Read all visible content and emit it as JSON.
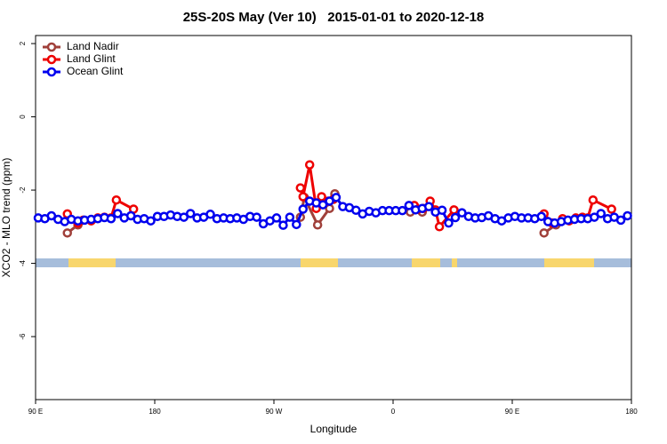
{
  "chart_data": {
    "type": "line",
    "title": "25S-20S May (Ver 10)   2015-01-01 to 2020-12-18",
    "x_label": "Longitude",
    "y_label": "XCO2 - MLO trend (ppm)",
    "xlim": [
      90,
      540
    ],
    "ylim": [
      -7.72,
      2.22
    ],
    "xticks": [
      {
        "value": 90,
        "label": "90 E"
      },
      {
        "value": 180,
        "label": "180"
      },
      {
        "value": 270,
        "label": "90 W"
      },
      {
        "value": 360,
        "label": "0"
      },
      {
        "value": 450,
        "label": "90 E"
      },
      {
        "value": 540,
        "label": "180"
      }
    ],
    "yticks": [
      2,
      0,
      -2,
      -4,
      -6
    ],
    "legend": "top-left",
    "series": [
      {
        "name": "Land Nadir",
        "color": "#a0403a",
        "x": [
          114,
          122,
          null,
          290,
          293,
          303,
          312,
          316,
          null,
          373,
          382,
          null,
          474,
          483
        ],
        "values": [
          -3.17,
          -2.95,
          null,
          -2.74,
          -2.2,
          -2.95,
          -2.5,
          -2.1,
          null,
          -2.6,
          -2.6,
          null,
          -3.17,
          -2.95
        ]
      },
      {
        "name": "Land Glint",
        "color": "#ee0000",
        "x": [
          114,
          122,
          126,
          132,
          137,
          142,
          147,
          151,
          164,
          null,
          290,
          292,
          297,
          302,
          306,
          311,
          315,
          null,
          376,
          379,
          383,
          388,
          392,
          395,
          406,
          null,
          474,
          480,
          488,
          493,
          498,
          503,
          507,
          511,
          525
        ],
        "values": [
          -2.65,
          -2.9,
          -2.82,
          -2.84,
          -2.76,
          -2.74,
          -2.76,
          -2.27,
          -2.52,
          null,
          -1.94,
          -2.18,
          -1.31,
          -2.5,
          -2.18,
          -2.3,
          -2.25,
          null,
          -2.42,
          -2.52,
          -2.5,
          -2.3,
          -2.54,
          -3.0,
          -2.54,
          null,
          -2.65,
          -2.9,
          -2.78,
          -2.84,
          -2.76,
          -2.74,
          -2.76,
          -2.27,
          -2.52
        ]
      },
      {
        "name": "Ocean Glint",
        "color": "#0000ee",
        "x": [
          92,
          97,
          102,
          107,
          112,
          117,
          122,
          127,
          132,
          137,
          142,
          147,
          152,
          157,
          162,
          167,
          172,
          177,
          182,
          187,
          192,
          197,
          202,
          207,
          212,
          217,
          222,
          227,
          232,
          237,
          242,
          247,
          252,
          257,
          262,
          267,
          272,
          277,
          282,
          287,
          292,
          297,
          302,
          307,
          312,
          317,
          322,
          327,
          332,
          337,
          342,
          347,
          352,
          357,
          362,
          367,
          372,
          377,
          382,
          387,
          392,
          397,
          402,
          407,
          412,
          417,
          422,
          427,
          432,
          437,
          442,
          447,
          452,
          457,
          462,
          467,
          472,
          477,
          482,
          487,
          492,
          497,
          502,
          507,
          512,
          517,
          522,
          527,
          532,
          537
        ],
        "values": [
          -2.76,
          -2.78,
          -2.7,
          -2.8,
          -2.86,
          -2.8,
          -2.84,
          -2.82,
          -2.8,
          -2.78,
          -2.75,
          -2.78,
          -2.64,
          -2.76,
          -2.7,
          -2.8,
          -2.78,
          -2.84,
          -2.72,
          -2.72,
          -2.68,
          -2.72,
          -2.74,
          -2.64,
          -2.76,
          -2.74,
          -2.66,
          -2.78,
          -2.76,
          -2.78,
          -2.76,
          -2.8,
          -2.72,
          -2.74,
          -2.92,
          -2.84,
          -2.76,
          -2.96,
          -2.74,
          -2.94,
          -2.52,
          -2.3,
          -2.35,
          -2.4,
          -2.3,
          -2.2,
          -2.45,
          -2.48,
          -2.55,
          -2.65,
          -2.58,
          -2.62,
          -2.56,
          -2.56,
          -2.56,
          -2.56,
          -2.42,
          -2.54,
          -2.5,
          -2.45,
          -2.6,
          -2.55,
          -2.9,
          -2.75,
          -2.62,
          -2.72,
          -2.76,
          -2.75,
          -2.7,
          -2.78,
          -2.84,
          -2.76,
          -2.72,
          -2.76,
          -2.76,
          -2.78,
          -2.72,
          -2.86,
          -2.9,
          -2.86,
          -2.82,
          -2.8,
          -2.78,
          -2.78,
          -2.74,
          -2.64,
          -2.78,
          -2.74,
          -2.82,
          -2.7
        ]
      }
    ]
  }
}
